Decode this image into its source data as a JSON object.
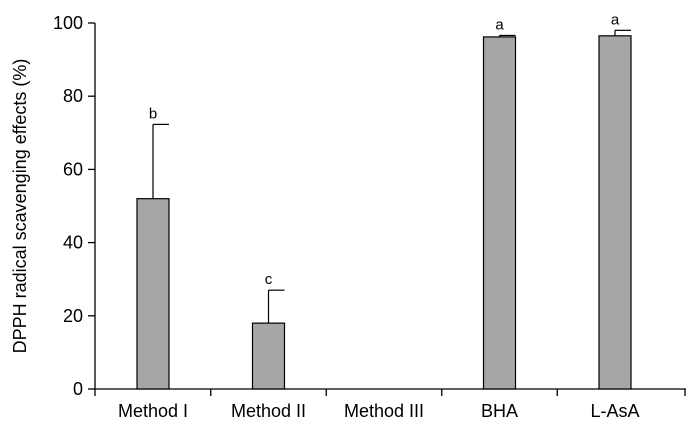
{
  "chart_data": {
    "type": "bar",
    "title": "",
    "xlabel": "",
    "ylabel": "DPPH radical scavenging effects (%)",
    "ylim": [
      0,
      100
    ],
    "yticks": [
      0,
      20,
      40,
      60,
      80,
      100
    ],
    "grid": false,
    "categories": [
      "Method I",
      "Method II",
      "Method III",
      "BHA",
      "L-AsA"
    ],
    "values": [
      52,
      18,
      0,
      96.2,
      96.5
    ],
    "error_upper": [
      20.3,
      9,
      0,
      0.4,
      1.5
    ],
    "significance": [
      "b",
      "c",
      "",
      "a",
      "a"
    ],
    "bar_color": "#a6a6a6",
    "bar_edge_color": "#000000"
  }
}
